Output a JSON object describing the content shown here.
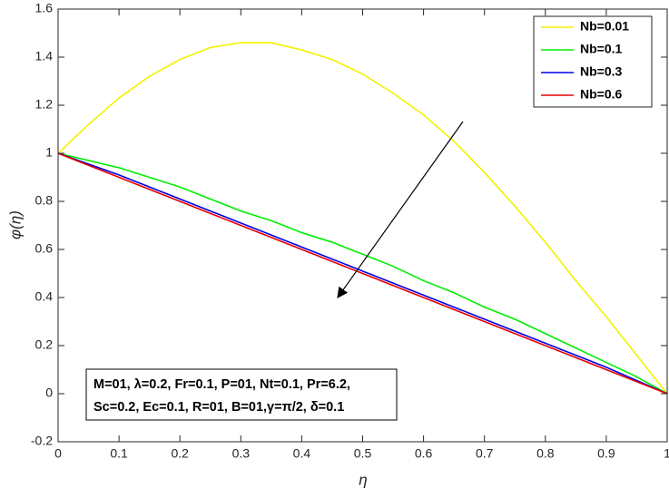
{
  "chart_data": {
    "type": "line",
    "xlabel": "η",
    "ylabel": "φ(η)",
    "x": [
      0,
      0.05,
      0.1,
      0.15,
      0.2,
      0.25,
      0.3,
      0.35,
      0.4,
      0.45,
      0.5,
      0.55,
      0.6,
      0.65,
      0.7,
      0.75,
      0.8,
      0.85,
      0.9,
      0.95,
      1
    ],
    "series": [
      {
        "name": "Nb=0.01",
        "color": "#f2f200",
        "values": [
          1,
          1.12,
          1.23,
          1.32,
          1.39,
          1.44,
          1.46,
          1.46,
          1.43,
          1.39,
          1.33,
          1.25,
          1.16,
          1.05,
          0.92,
          0.78,
          0.63,
          0.47,
          0.32,
          0.16,
          0
        ]
      },
      {
        "name": "Nb=0.1",
        "color": "#00ee00",
        "values": [
          1,
          0.97,
          0.94,
          0.9,
          0.86,
          0.81,
          0.76,
          0.72,
          0.67,
          0.63,
          0.58,
          0.53,
          0.47,
          0.42,
          0.36,
          0.31,
          0.25,
          0.19,
          0.13,
          0.07,
          0
        ]
      },
      {
        "name": "Nb=0.3",
        "color": "#0000e6",
        "values": [
          1,
          0.955,
          0.91,
          0.86,
          0.81,
          0.76,
          0.71,
          0.66,
          0.61,
          0.56,
          0.51,
          0.46,
          0.41,
          0.36,
          0.31,
          0.26,
          0.21,
          0.16,
          0.11,
          0.055,
          0
        ]
      },
      {
        "name": "Nb=0.6",
        "color": "#e60000",
        "values": [
          1,
          0.95,
          0.9,
          0.85,
          0.8,
          0.75,
          0.7,
          0.65,
          0.6,
          0.55,
          0.5,
          0.45,
          0.4,
          0.35,
          0.3,
          0.25,
          0.2,
          0.15,
          0.1,
          0.05,
          0
        ]
      }
    ],
    "xlim": [
      0,
      1
    ],
    "xticks": [
      0,
      0.1,
      0.2,
      0.3,
      0.4,
      0.5,
      0.6,
      0.7,
      0.8,
      0.9,
      1
    ],
    "ylim": [
      -0.2,
      1.6
    ],
    "yticks": [
      -0.2,
      0,
      0.2,
      0.4,
      0.6,
      0.8,
      1,
      1.2,
      1.4,
      1.6
    ],
    "grid": false,
    "legend": "top-right",
    "annotations": [
      "M=01, λ=0.2, Fr=0.1, P=01, Nt=0.1, Pr=6.2,",
      "Sc=0.2, Ec=0.1, R=01, B=01,γ=π/2, δ=0.1"
    ]
  }
}
